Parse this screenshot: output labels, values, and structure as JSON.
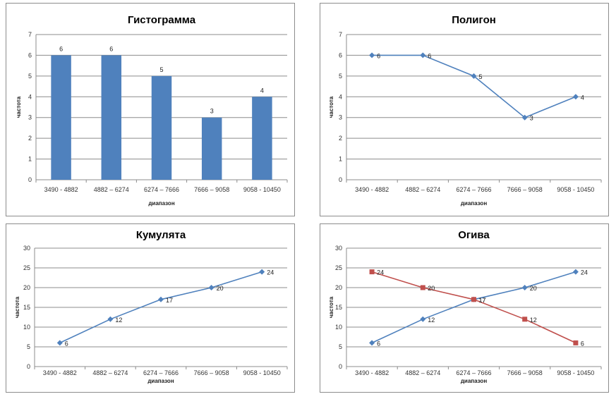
{
  "chart_data": [
    {
      "type": "bar",
      "title": "Гистограмма",
      "xlabel": "диапазон",
      "ylabel": "частота",
      "categories": [
        "3490 - 4882",
        "4882 – 6274",
        "6274 – 7666",
        "7666 – 9058",
        "9058 - 10450"
      ],
      "series": [
        {
          "values": [
            6,
            6,
            5,
            3,
            4
          ],
          "color": "#4f81bd"
        }
      ],
      "ylim": [
        0,
        7
      ],
      "yticks": [
        0,
        1,
        2,
        3,
        4,
        5,
        6,
        7
      ],
      "grid": true,
      "data_labels": true
    },
    {
      "type": "line",
      "title": "Полигон",
      "xlabel": "диапазон",
      "ylabel": "частота",
      "categories": [
        "3490 - 4882",
        "4882 – 6274",
        "6274 – 7666",
        "7666 – 9058",
        "9058 - 10450"
      ],
      "series": [
        {
          "values": [
            6,
            6,
            5,
            3,
            4
          ],
          "color": "#4f81bd",
          "marker": "diamond"
        }
      ],
      "ylim": [
        0,
        7
      ],
      "yticks": [
        0,
        1,
        2,
        3,
        4,
        5,
        6,
        7
      ],
      "grid": true,
      "data_labels": true
    },
    {
      "type": "line",
      "title": "Кумулята",
      "xlabel": "диапазон",
      "ylabel": "частота",
      "categories": [
        "3490 - 4882",
        "4882 – 6274",
        "6274 – 7666",
        "7666 – 9058",
        "9058 - 10450"
      ],
      "series": [
        {
          "values": [
            6,
            12,
            17,
            20,
            24
          ],
          "color": "#4f81bd",
          "marker": "diamond"
        }
      ],
      "ylim": [
        0,
        30
      ],
      "yticks": [
        0,
        5,
        10,
        15,
        20,
        25,
        30
      ],
      "grid": true,
      "data_labels": true
    },
    {
      "type": "line",
      "title": "Огива",
      "xlabel": "диапазон",
      "ylabel": "частота",
      "categories": [
        "3490 - 4882",
        "4882 – 6274",
        "6274 – 7666",
        "7666 – 9058",
        "9058 - 10450"
      ],
      "series": [
        {
          "values": [
            6,
            12,
            17,
            20,
            24
          ],
          "color": "#4f81bd",
          "marker": "diamond"
        },
        {
          "values": [
            24,
            20,
            17,
            12,
            6
          ],
          "color": "#c0504d",
          "marker": "square"
        }
      ],
      "ylim": [
        0,
        30
      ],
      "yticks": [
        0,
        5,
        10,
        15,
        20,
        25,
        30
      ],
      "grid": true,
      "data_labels": true
    }
  ]
}
